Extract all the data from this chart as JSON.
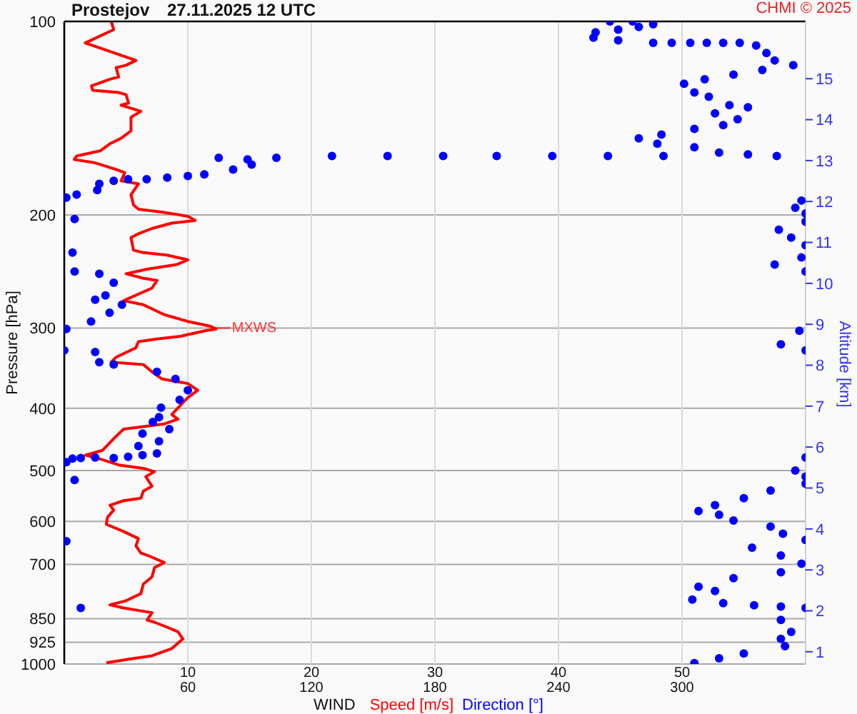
{
  "chart_data": {
    "type": "line",
    "title": "Prostejov",
    "subtitle": "27.11.2025 12 UTC",
    "xlabel": "WIND",
    "ylabel": "Pressure [hPa]",
    "y2label": "Altitude [km]",
    "annotations": [
      "CHMI © 2025",
      {
        "text": "MXWS",
        "x": 12.3,
        "y": 300
      }
    ],
    "xlim": [
      0,
      60
    ],
    "xticks": [
      10,
      20,
      30,
      40,
      50
    ],
    "x2lim": [
      0,
      360
    ],
    "x2ticks": [
      60,
      120,
      180,
      240,
      300
    ],
    "ylim": [
      1000,
      100
    ],
    "yticks": [
      100,
      200,
      300,
      400,
      500,
      600,
      700,
      850,
      925,
      1000
    ],
    "log": true,
    "y2lim": [
      0.7,
      16.4
    ],
    "y2ticks": [
      1,
      2,
      3,
      4,
      5,
      6,
      7,
      8,
      9,
      10,
      11,
      12,
      13,
      14,
      15
    ],
    "grid": true,
    "legend": "bottom",
    "series": [
      {
        "name": "Speed [m/s]",
        "color": "#ff0000",
        "x": [
          3.8,
          4.0,
          1.7,
          3.5,
          5.8,
          5.0,
          4.2,
          4.4,
          3.7,
          2.2,
          2.3,
          4.4,
          5.0,
          5.2,
          4.6,
          6.2,
          5.4,
          5.4,
          4.6,
          3.7,
          2.9,
          1.0,
          0.8,
          2.5,
          4.2,
          4.9,
          4.6,
          6.0,
          5.4,
          5.6,
          6.0,
          7.9,
          10.0,
          10.6,
          8.7,
          7.1,
          6.0,
          5.4,
          5.6,
          6.4,
          8.3,
          10.0,
          9.1,
          6.7,
          5.0,
          6.4,
          7.5,
          7.1,
          4.8,
          6.4,
          8.1,
          10.0,
          11.8,
          12.3,
          11.4,
          9.4,
          7.5,
          6.0,
          5.8,
          4.2,
          3.8,
          6.4,
          7.1,
          7.9,
          10.0,
          10.8,
          10.0,
          9.6,
          8.7,
          9.2,
          8.1,
          4.8,
          4.0,
          3.1,
          1.7,
          3.1,
          4.4,
          6.4,
          7.3,
          6.6,
          7.1,
          6.4,
          6.2,
          4.8,
          3.7,
          4.0,
          3.5,
          3.4,
          4.8,
          6.0,
          5.8,
          6.2,
          6.7,
          8.1,
          7.3,
          7.1,
          6.4,
          6.2,
          5.0,
          3.7,
          4.8,
          7.1,
          6.7,
          7.3,
          8.3,
          9.2,
          9.6,
          8.7,
          7.1,
          5.2,
          3.5
        ],
        "values": [
          100,
          103,
          108,
          111,
          115,
          117,
          118,
          122,
          123,
          126,
          128,
          129,
          130,
          134,
          135,
          138,
          141,
          148,
          152,
          155,
          159,
          162,
          164,
          166,
          170,
          172,
          177,
          179,
          186,
          193,
          196,
          198,
          201,
          204,
          206,
          210,
          214,
          217,
          227,
          229,
          231,
          235,
          239,
          243,
          247,
          251,
          253,
          260,
          272,
          276,
          286,
          293,
          298,
          301,
          303,
          309,
          312,
          315,
          322,
          333,
          339,
          342,
          351,
          360,
          366,
          375,
          385,
          392,
          409,
          416,
          423,
          431,
          446,
          465,
          473,
          481,
          490,
          496,
          502,
          511,
          529,
          538,
          552,
          557,
          566,
          576,
          591,
          606,
          622,
          638,
          655,
          672,
          677,
          695,
          708,
          732,
          751,
          777,
          797,
          809,
          818,
          832,
          854,
          861,
          876,
          891,
          914,
          946,
          971,
          983,
          995
        ]
      },
      {
        "name": "Direction [°]",
        "type": "scatter",
        "color": "#0000ff",
        "axis": "x2",
        "marker": "circle",
        "x": [
          265,
          276,
          286,
          279,
          269,
          258,
          257,
          269,
          286,
          295,
          304,
          312,
          320,
          328,
          336,
          341,
          345,
          354,
          339,
          325,
          311,
          301,
          306,
          313,
          323,
          332,
          316,
          327,
          320,
          306,
          290,
          279,
          288,
          306,
          318,
          332,
          346,
          291,
          264,
          237,
          210,
          184,
          157,
          130,
          103,
          89,
          75,
          91,
          82,
          68,
          60,
          50,
          40,
          31,
          24,
          17,
          16,
          6,
          1,
          358,
          355,
          360,
          5,
          360,
          347,
          353,
          360,
          4,
          358,
          345,
          360,
          5,
          17,
          24,
          20,
          15,
          28,
          22,
          13,
          1,
          357,
          348,
          360,
          0,
          15,
          17,
          24,
          45,
          54,
          60,
          56,
          47,
          46,
          43,
          51,
          38,
          46,
          36,
          45,
          38,
          31,
          15,
          360,
          24,
          8,
          4,
          1,
          355,
          360,
          5,
          360,
          343,
          330,
          316,
          308,
          318,
          325,
          343,
          349,
          360,
          1,
          334,
          348,
          358,
          348,
          325,
          308,
          316,
          305,
          320,
          335,
          348,
          360,
          8,
          348,
          353,
          348,
          350,
          330,
          318,
          306
        ],
        "values": [
          100,
          100,
          101,
          102,
          103,
          104,
          106,
          107,
          108,
          108,
          108,
          108,
          108,
          108,
          109,
          112,
          115,
          117,
          119,
          121,
          123,
          125,
          129,
          131,
          135,
          136,
          139,
          142,
          145,
          147,
          150,
          152,
          155,
          157,
          160,
          161,
          162,
          162,
          162,
          162,
          162,
          162,
          162,
          162,
          163,
          164,
          163,
          167,
          170,
          173,
          174,
          175,
          176,
          176,
          177,
          179,
          183,
          186,
          188,
          190,
          195,
          199,
          203,
          205,
          211,
          217,
          223,
          229,
          233,
          239,
          245,
          245,
          247,
          255,
          267,
          271,
          276,
          284,
          293,
          301,
          303,
          318,
          325,
          325,
          327,
          339,
          342,
          351,
          360,
          375,
          388,
          399,
          413,
          420,
          431,
          438,
          450,
          458,
          470,
          473,
          476,
          477,
          477,
          478,
          478,
          479,
          485,
          500,
          511,
          517,
          524,
          537,
          552,
          566,
          578,
          586,
          598,
          611,
          627,
          641,
          644,
          659,
          678,
          698,
          720,
          735,
          758,
          770,
          794,
          804,
          810,
          814,
          818,
          818,
          854,
          891,
          914,
          938,
          963,
          980,
          997
        ]
      }
    ]
  }
}
